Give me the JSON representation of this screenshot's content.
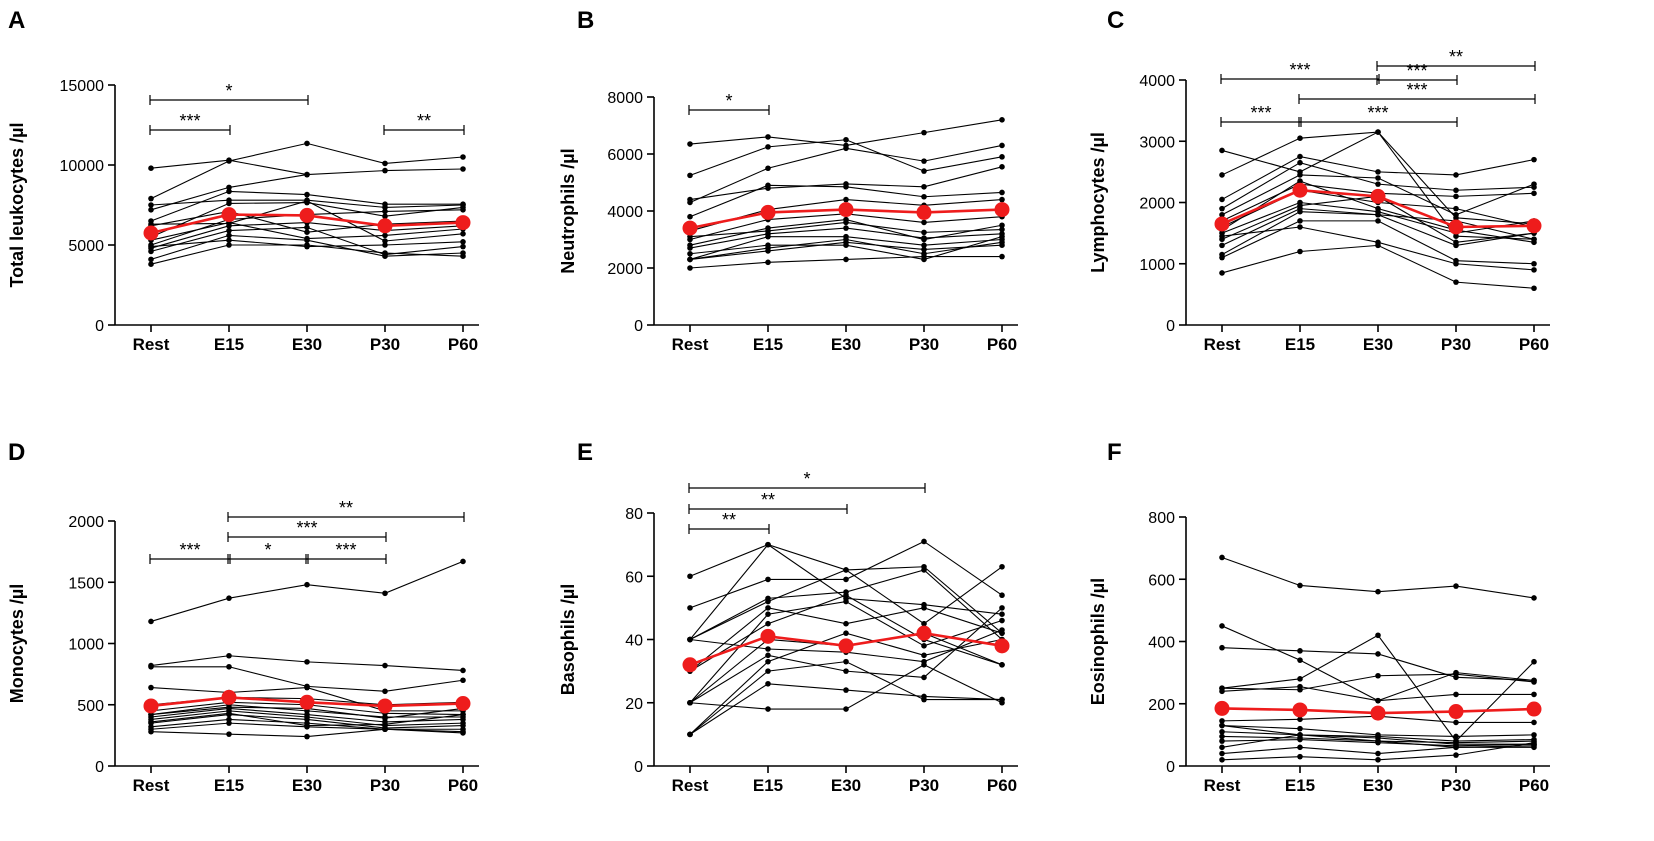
{
  "chart_data": [
    {
      "panel": "A",
      "type": "line",
      "ylabel": "Total leukocytes /µl",
      "categories": [
        "Rest",
        "E15",
        "E30",
        "P30",
        "P60"
      ],
      "ylim": [
        0,
        15000
      ],
      "yticks": [
        "0",
        "5000",
        "10000",
        "15000"
      ],
      "ytick_values": [
        0,
        5000,
        10000,
        15000
      ],
      "mean": [
        5750,
        6900,
        6850,
        6200,
        6400
      ],
      "subjects": [
        [
          9800,
          10300,
          9400,
          null,
          null
        ],
        [
          7900,
          10250,
          11350,
          10100,
          10500
        ],
        [
          7200,
          8600,
          9400,
          9650,
          9750
        ],
        [
          6500,
          8350,
          8150,
          7550,
          7550
        ],
        [
          7500,
          7800,
          7800,
          7350,
          7500
        ],
        [
          5500,
          7600,
          7650,
          6800,
          7350
        ],
        [
          5000,
          6600,
          6900,
          7100,
          7200
        ],
        [
          6300,
          6350,
          7750,
          5250,
          5700
        ],
        [
          4800,
          6200,
          6400,
          5900,
          6200
        ],
        [
          4600,
          5900,
          6100,
          4400,
          4900
        ],
        [
          4100,
          5600,
          5300,
          4300,
          4500
        ],
        [
          3800,
          5000,
          5000,
          4500,
          4300
        ],
        [
          5300,
          6400,
          5400,
          5600,
          6000
        ],
        [
          6200,
          7100,
          5800,
          6300,
          6500
        ],
        [
          4900,
          5300,
          4900,
          5000,
          5200
        ]
      ],
      "significance": [
        {
          "from": 0,
          "to": 2,
          "label": "*"
        },
        {
          "from": 0,
          "to": 1,
          "label": "***"
        },
        {
          "from": 3,
          "to": 4,
          "label": "**"
        }
      ]
    },
    {
      "panel": "B",
      "type": "line",
      "ylabel": "Neutrophils /µl",
      "categories": [
        "Rest",
        "E15",
        "E30",
        "P30",
        "P60"
      ],
      "ylim": [
        0,
        8000
      ],
      "yticks": [
        "0",
        "2000",
        "4000",
        "6000",
        "8000"
      ],
      "ytick_values": [
        0,
        2000,
        4000,
        6000,
        8000
      ],
      "mean": [
        3400,
        3950,
        4050,
        3950,
        4050
      ],
      "subjects": [
        [
          6350,
          6600,
          6300,
          6750,
          7200
        ],
        [
          5250,
          6250,
          6500,
          5400,
          5900
        ],
        [
          4300,
          5500,
          6200,
          5750,
          6300
        ],
        [
          4400,
          4800,
          4950,
          4850,
          5550
        ],
        [
          3800,
          4900,
          4850,
          4500,
          4650
        ],
        [
          3300,
          4050,
          4400,
          4200,
          4400
        ],
        [
          3000,
          3700,
          3900,
          3600,
          3800
        ],
        [
          2800,
          3400,
          3700,
          3000,
          3500
        ],
        [
          2700,
          3200,
          3400,
          3050,
          3200
        ],
        [
          2300,
          3100,
          3100,
          2800,
          3000
        ],
        [
          2300,
          2700,
          3000,
          2500,
          2900
        ],
        [
          2000,
          2200,
          2300,
          2400,
          2400
        ],
        [
          2300,
          2600,
          2900,
          2650,
          2800
        ],
        [
          3100,
          3300,
          3600,
          3250,
          3350
        ],
        [
          2500,
          2800,
          2800,
          2300,
          3100
        ]
      ],
      "significance": [
        {
          "from": 0,
          "to": 1,
          "label": "*"
        }
      ]
    },
    {
      "panel": "C",
      "type": "line",
      "ylabel": "Lymphocytes /µl",
      "categories": [
        "Rest",
        "E15",
        "E30",
        "P30",
        "P60"
      ],
      "ylim": [
        0,
        4000
      ],
      "yticks": [
        "0",
        "1000",
        "2000",
        "3000",
        "4000"
      ],
      "ytick_values": [
        0,
        1000,
        2000,
        3000,
        4000
      ],
      "mean": [
        1650,
        2200,
        2100,
        1600,
        1620
      ],
      "subjects": [
        [
          2850,
          2500,
          3150,
          1450,
          1400
        ],
        [
          2450,
          3050,
          3150,
          1750,
          1650
        ],
        [
          2050,
          2750,
          2500,
          2450,
          2700
        ],
        [
          1900,
          2650,
          2300,
          2200,
          2250
        ],
        [
          1800,
          2450,
          2400,
          1800,
          2300
        ],
        [
          1700,
          2300,
          2150,
          2100,
          2150
        ],
        [
          1600,
          2200,
          2000,
          1900,
          1600
        ],
        [
          1500,
          2000,
          1850,
          1500,
          1700
        ],
        [
          1400,
          1950,
          2100,
          1350,
          1500
        ],
        [
          1300,
          1900,
          1800,
          1700,
          1400
        ],
        [
          1150,
          1850,
          1800,
          1300,
          1500
        ],
        [
          1100,
          1700,
          1700,
          1050,
          1000
        ],
        [
          850,
          1200,
          1300,
          700,
          600
        ],
        [
          1450,
          1600,
          1350,
          1000,
          900
        ],
        [
          1550,
          2350,
          1900,
          1550,
          1350
        ]
      ],
      "significance": [
        {
          "from": 0,
          "to": 2,
          "label": "***"
        },
        {
          "from": 2,
          "to": 4,
          "label": "**"
        },
        {
          "from": 2,
          "to": 3,
          "label": "***"
        },
        {
          "from": 1,
          "to": 4,
          "label": "***"
        },
        {
          "from": 0,
          "to": 1,
          "label": "***"
        },
        {
          "from": 1,
          "to": 3,
          "label": "***"
        }
      ]
    },
    {
      "panel": "D",
      "type": "line",
      "ylabel": "Monocytes /µl",
      "categories": [
        "Rest",
        "E15",
        "E30",
        "P30",
        "P60"
      ],
      "ylim": [
        0,
        2000
      ],
      "yticks": [
        "0",
        "500",
        "1000",
        "1500",
        "2000"
      ],
      "ytick_values": [
        0,
        500,
        1000,
        1500,
        2000
      ],
      "mean": [
        490,
        560,
        520,
        490,
        510
      ],
      "subjects": [
        [
          1180,
          1370,
          1480,
          1410,
          1670
        ],
        [
          820,
          900,
          850,
          820,
          780
        ],
        [
          810,
          810,
          650,
          610,
          700
        ],
        [
          640,
          600,
          640,
          450,
          450
        ],
        [
          500,
          560,
          550,
          500,
          520
        ],
        [
          450,
          520,
          500,
          430,
          420
        ],
        [
          420,
          500,
          450,
          400,
          400
        ],
        [
          400,
          470,
          420,
          360,
          380
        ],
        [
          380,
          450,
          400,
          330,
          350
        ],
        [
          350,
          420,
          380,
          310,
          330
        ],
        [
          320,
          380,
          350,
          300,
          300
        ],
        [
          300,
          350,
          320,
          300,
          280
        ],
        [
          280,
          260,
          240,
          300,
          270
        ],
        [
          360,
          430,
          330,
          340,
          420
        ],
        [
          420,
          480,
          470,
          390,
          470
        ]
      ],
      "significance": [
        {
          "from": 1,
          "to": 4,
          "label": "**"
        },
        {
          "from": 1,
          "to": 3,
          "label": "***"
        },
        {
          "from": 0,
          "to": 1,
          "label": "***"
        },
        {
          "from": 1,
          "to": 2,
          "label": "*"
        },
        {
          "from": 2,
          "to": 3,
          "label": "***"
        }
      ]
    },
    {
      "panel": "E",
      "type": "line",
      "ylabel": "Basophils /µl",
      "categories": [
        "Rest",
        "E15",
        "E30",
        "P30",
        "P60"
      ],
      "ylim": [
        0,
        80
      ],
      "yticks": [
        "0",
        "20",
        "40",
        "60",
        "80"
      ],
      "ytick_values": [
        0,
        20,
        40,
        60,
        80
      ],
      "mean": [
        32,
        41,
        38,
        42,
        38
      ],
      "subjects": [
        [
          60,
          70,
          62,
          63,
          42
        ],
        [
          50,
          59,
          59,
          71,
          54
        ],
        [
          40,
          70,
          53,
          51,
          48
        ],
        [
          40,
          52,
          62,
          45,
          63
        ],
        [
          40,
          53,
          55,
          62,
          40
        ],
        [
          30,
          50,
          45,
          50,
          42
        ],
        [
          20,
          40,
          38,
          42,
          32
        ],
        [
          20,
          35,
          30,
          28,
          50
        ],
        [
          10,
          33,
          42,
          35,
          40
        ],
        [
          10,
          26,
          24,
          22,
          21
        ],
        [
          20,
          18,
          18,
          32,
          20
        ],
        [
          30,
          45,
          54,
          40,
          32
        ],
        [
          40,
          37,
          36,
          33,
          43
        ],
        [
          10,
          30,
          33,
          21,
          21
        ],
        [
          20,
          48,
          52,
          38,
          46
        ]
      ],
      "significance": [
        {
          "from": 0,
          "to": 3,
          "label": "*"
        },
        {
          "from": 0,
          "to": 2,
          "label": "**"
        },
        {
          "from": 0,
          "to": 1,
          "label": "**"
        }
      ]
    },
    {
      "panel": "F",
      "type": "line",
      "ylabel": "Eosinophils /µl",
      "categories": [
        "Rest",
        "E15",
        "E30",
        "P30",
        "P60"
      ],
      "ylim": [
        0,
        800
      ],
      "yticks": [
        "0",
        "200",
        "400",
        "600",
        "800"
      ],
      "ytick_values": [
        0,
        200,
        400,
        600,
        800
      ],
      "mean": [
        185,
        180,
        170,
        175,
        183
      ],
      "subjects": [
        [
          670,
          580,
          560,
          578,
          540
        ],
        [
          450,
          340,
          210,
          300,
          275
        ],
        [
          380,
          370,
          360,
          285,
          275
        ],
        [
          250,
          280,
          420,
          80,
          335
        ],
        [
          250,
          245,
          290,
          295,
          270
        ],
        [
          240,
          255,
          210,
          230,
          230
        ],
        [
          145,
          150,
          160,
          140,
          140
        ],
        [
          130,
          120,
          100,
          95,
          100
        ],
        [
          110,
          100,
          95,
          80,
          85
        ],
        [
          95,
          90,
          80,
          75,
          80
        ],
        [
          80,
          85,
          75,
          65,
          70
        ],
        [
          60,
          100,
          90,
          70,
          70
        ],
        [
          40,
          60,
          40,
          60,
          60
        ],
        [
          20,
          30,
          20,
          35,
          75
        ],
        [
          130,
          100,
          80,
          60,
          65
        ]
      ],
      "significance": []
    }
  ]
}
